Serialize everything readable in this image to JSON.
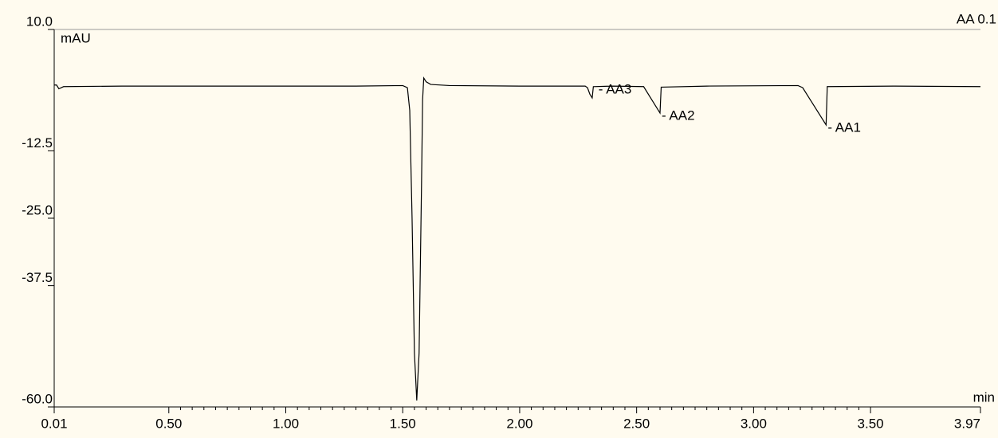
{
  "chart_data": {
    "type": "line",
    "title": "AA 0.1",
    "y_label": "mAU",
    "x_label": "min",
    "xlim": [
      0.01,
      3.97
    ],
    "xticks": [
      0.01,
      {
        "value": 0.5,
        "label": "0.50"
      },
      {
        "value": 1,
        "label": "1.00"
      },
      {
        "value": 1.5,
        "label": "1.50"
      },
      {
        "value": 2,
        "label": "2.00"
      },
      {
        "value": 2.5,
        "label": "2.50"
      },
      {
        "value": 3,
        "label": "3.00"
      },
      {
        "value": 3.5,
        "label": "3.50"
      },
      3.97
    ],
    "ylim": [
      -60,
      10
    ],
    "yticks": [
      {
        "value": 10,
        "label": "10.0"
      },
      -12.5,
      {
        "value": -25,
        "label": "-25.0"
      },
      -37.5,
      {
        "value": -60,
        "label": "-60.0"
      }
    ],
    "series": [
      {
        "color": "#000000",
        "x": [
          0.01,
          0.02,
          0.03,
          0.05,
          0.3,
          0.8,
          1.3,
          1.5,
          1.52,
          1.53,
          1.54,
          1.55,
          1.56,
          1.57,
          1.58,
          1.585,
          1.59,
          1.6,
          1.62,
          1.7,
          2.0,
          2.28,
          2.29,
          2.3,
          2.31,
          2.315,
          2.4,
          2.53,
          2.6,
          2.605,
          2.8,
          3.19,
          3.21,
          3.31,
          3.315,
          3.6,
          3.97
        ],
        "values": [
          -0.3,
          -0.3,
          -1.0,
          -0.6,
          -0.5,
          -0.5,
          -0.5,
          -0.4,
          -0.8,
          -5,
          -25,
          -50,
          -58.8,
          -50,
          -20,
          -3,
          1.0,
          0.3,
          -0.2,
          -0.4,
          -0.5,
          -0.5,
          -0.8,
          -2.0,
          -2.7,
          -0.6,
          -0.5,
          -0.6,
          -5.5,
          -0.7,
          -0.5,
          -0.4,
          -0.8,
          -7.7,
          -0.6,
          -0.5,
          -0.6
        ]
      }
    ],
    "annotations": [
      {
        "text": "- AA3",
        "x": 2.33
      },
      {
        "text": "- AA2",
        "x": 2.6
      },
      {
        "text": "- AA1",
        "x": 3.31
      }
    ]
  }
}
